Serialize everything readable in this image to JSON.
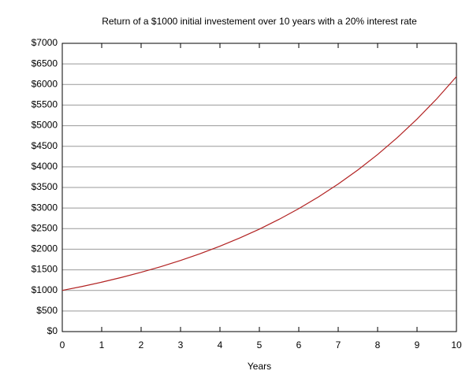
{
  "chart_data": {
    "type": "line",
    "title": "Return of a $1000 initial investement over 10 years with a 20% interest rate",
    "x_label": "Years",
    "x": [
      0,
      0.5,
      1,
      1.5,
      2,
      2.5,
      3,
      3.5,
      4,
      4.5,
      5,
      5.5,
      6,
      6.5,
      7,
      7.5,
      8,
      8.5,
      9,
      9.5,
      10
    ],
    "series": [
      {
        "color": "#b22222",
        "values": [
          1000,
          1095,
          1200,
          1315,
          1440,
          1577,
          1728,
          1893,
          2074,
          2272,
          2488,
          2726,
          2986,
          3271,
          3583,
          3925,
          4300,
          4710,
          5160,
          5652,
          6192
        ]
      }
    ],
    "xlim": [
      0,
      10
    ],
    "xticks": [
      0,
      1,
      2,
      3,
      4,
      5,
      6,
      7,
      8,
      9,
      10
    ],
    "ylim": [
      0,
      7000
    ],
    "yticks": [
      {
        "value": 0,
        "label": "$0"
      },
      {
        "value": 500,
        "label": "$500"
      },
      {
        "value": 1000,
        "label": "$1000"
      },
      {
        "value": 1500,
        "label": "$1500"
      },
      {
        "value": 2000,
        "label": "$2000"
      },
      {
        "value": 2500,
        "label": "$2500"
      },
      {
        "value": 3000,
        "label": "$3000"
      },
      {
        "value": 3500,
        "label": "$3500"
      },
      {
        "value": 4000,
        "label": "$4000"
      },
      {
        "value": 4500,
        "label": "$4500"
      },
      {
        "value": 5000,
        "label": "$5000"
      },
      {
        "value": 5500,
        "label": "$5500"
      },
      {
        "value": 6000,
        "label": "$6000"
      },
      {
        "value": 6500,
        "label": "$6500"
      },
      {
        "value": 7000,
        "label": "$7000"
      }
    ],
    "grid": true
  }
}
